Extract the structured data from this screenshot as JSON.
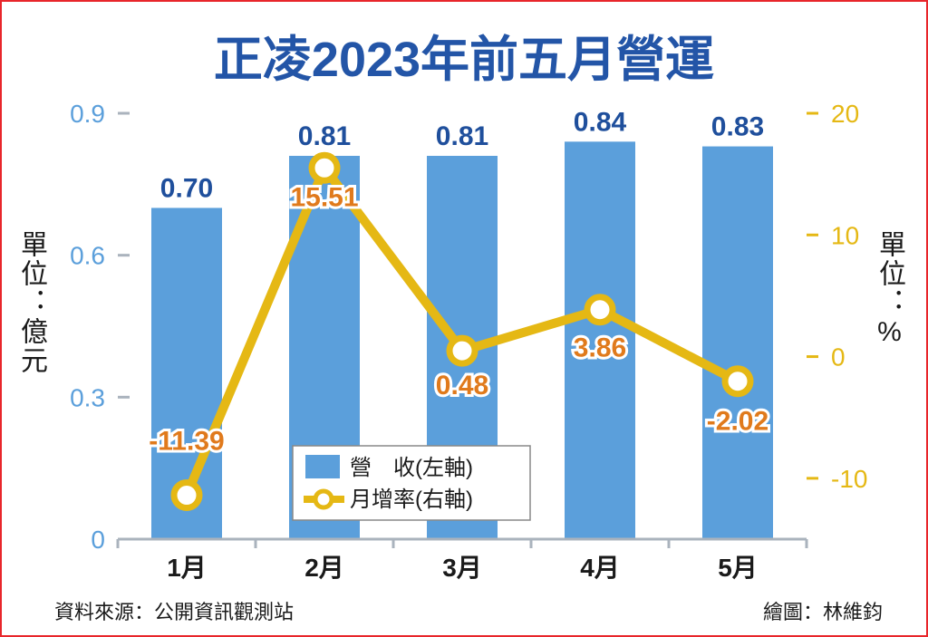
{
  "title": "正凌2023年前五月營運",
  "unit_left": "單位：億元",
  "unit_right": "單位：%",
  "source": "資料來源：公開資訊觀測站",
  "credit": "繪圖：林維鈞",
  "colors": {
    "bar": "#5b9fdb",
    "line": "#e5b814",
    "bar_label": "#1f4f9c",
    "line_label": "#e07a1c",
    "left_axis": "#5b9fdb",
    "right_axis": "#e5b814",
    "title": "#2355a7",
    "border": "#e8262b"
  },
  "chart_data": {
    "type": "bar",
    "categories": [
      "1月",
      "2月",
      "3月",
      "4月",
      "5月"
    ],
    "series": [
      {
        "name": "營　收(左軸)",
        "type": "bar",
        "axis": "left",
        "values": [
          0.7,
          0.81,
          0.81,
          0.84,
          0.83
        ],
        "labels": [
          "0.70",
          "0.81",
          "0.81",
          "0.84",
          "0.83"
        ]
      },
      {
        "name": "月增率(右軸)",
        "type": "line",
        "axis": "right",
        "values": [
          -11.39,
          15.51,
          0.48,
          3.86,
          -2.02
        ],
        "labels": [
          "-11.39",
          "15.51",
          "0.48",
          "3.86",
          "-2.02"
        ]
      }
    ],
    "left_axis": {
      "ticks": [
        "0",
        "0.3",
        "0.6",
        "0.9"
      ],
      "tick_values": [
        0,
        0.3,
        0.6,
        0.9
      ],
      "ylim": [
        0,
        0.9
      ]
    },
    "right_axis": {
      "ticks": [
        "-10",
        "0",
        "10",
        "20"
      ],
      "tick_values": [
        -10,
        0,
        10,
        20
      ],
      "ylim": [
        -15,
        20
      ]
    },
    "legend_position": "bottom-center",
    "grid": false
  }
}
